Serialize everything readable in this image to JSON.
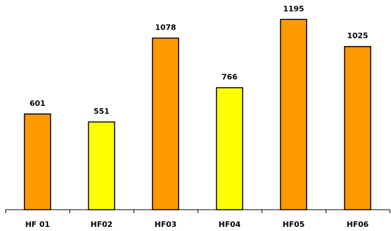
{
  "chart_data": {
    "type": "bar",
    "title": "",
    "xlabel": "",
    "ylabel": "",
    "categories": [
      "HF 01",
      "HF02",
      "HF03",
      "HF04",
      "HF05",
      "HF06"
    ],
    "values": [
      601,
      551,
      1078,
      766,
      1195,
      1025
    ],
    "data_labels": [
      "601",
      "551",
      "1078",
      "766",
      "1195",
      "1025"
    ],
    "bar_colors": [
      "#FF9900",
      "#FFFF00",
      "#FF9900",
      "#FFFF00",
      "#FF9900",
      "#FF9900"
    ],
    "bar_outline_color": "#000000",
    "axis_color": "#000000",
    "ylim": [
      0,
      1300
    ],
    "grid": false,
    "legend": "none"
  }
}
